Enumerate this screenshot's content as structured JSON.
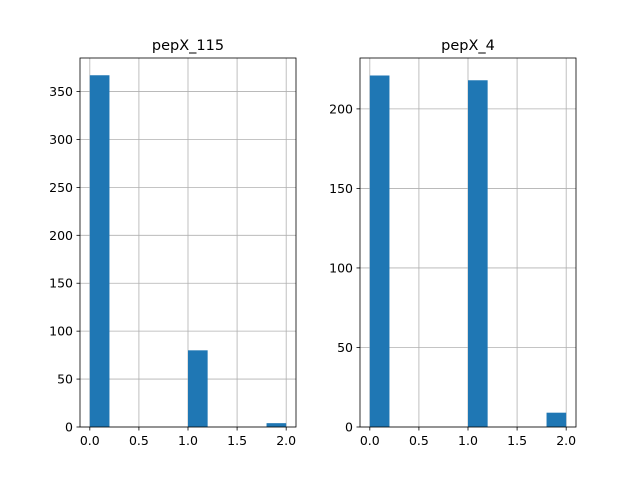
{
  "chart_data": [
    {
      "type": "bar",
      "title": "pepX_115",
      "xlabel": "",
      "ylabel": "",
      "xlim": [
        -0.1,
        2.1
      ],
      "ylim": [
        0,
        385
      ],
      "xticks": [
        0.0,
        0.5,
        1.0,
        1.5,
        2.0
      ],
      "xtick_labels": [
        "0.0",
        "0.5",
        "1.0",
        "1.5",
        "2.0"
      ],
      "yticks": [
        0,
        50,
        100,
        150,
        200,
        250,
        300,
        350
      ],
      "ytick_labels": [
        "0",
        "50",
        "100",
        "150",
        "200",
        "250",
        "300",
        "350"
      ],
      "bins": [
        {
          "start": 0.0,
          "end": 0.2,
          "value": 367
        },
        {
          "start": 1.0,
          "end": 1.2,
          "value": 80
        },
        {
          "start": 1.8,
          "end": 2.0,
          "value": 4
        }
      ],
      "grid": true,
      "bar_color": "#1f77b4"
    },
    {
      "type": "bar",
      "title": "pepX_4",
      "xlabel": "",
      "ylabel": "",
      "xlim": [
        -0.1,
        2.1
      ],
      "ylim": [
        0,
        232
      ],
      "xticks": [
        0.0,
        0.5,
        1.0,
        1.5,
        2.0
      ],
      "xtick_labels": [
        "0.0",
        "0.5",
        "1.0",
        "1.5",
        "2.0"
      ],
      "yticks": [
        0,
        50,
        100,
        150,
        200
      ],
      "ytick_labels": [
        "0",
        "50",
        "100",
        "150",
        "200"
      ],
      "bins": [
        {
          "start": 0.0,
          "end": 0.2,
          "value": 221
        },
        {
          "start": 1.0,
          "end": 1.2,
          "value": 218
        },
        {
          "start": 1.8,
          "end": 2.0,
          "value": 9
        }
      ],
      "grid": true,
      "bar_color": "#1f77b4"
    }
  ]
}
